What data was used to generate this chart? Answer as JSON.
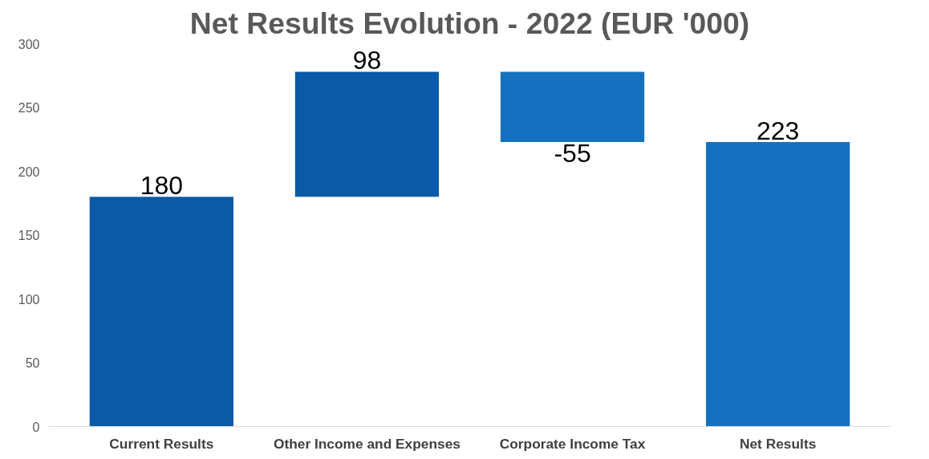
{
  "chart_data": {
    "type": "bar",
    "title": "Net Results Evolution - 2022 (EUR '000)",
    "categories": [
      "Current Results",
      "Other Income and Expenses",
      "Corporate Income Tax",
      "Net Results"
    ],
    "values": [
      180,
      98,
      -55,
      223
    ],
    "base": [
      0,
      180,
      278,
      0
    ],
    "colors": [
      "#0b5aa8",
      "#0b5aa8",
      "#1570c0",
      "#1570c0"
    ],
    "ylim": [
      0,
      300
    ],
    "yticks": [
      0,
      50,
      100,
      150,
      200,
      250,
      300
    ],
    "data_labels": true,
    "grid": false
  }
}
